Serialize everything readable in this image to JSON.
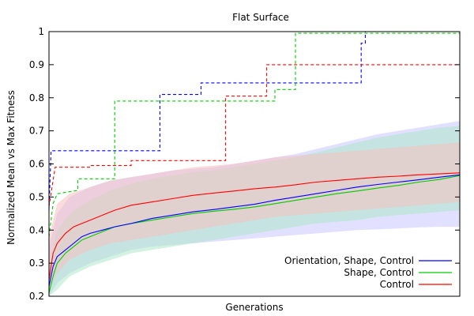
{
  "chart_data": {
    "type": "line",
    "title": "Flat Surface",
    "xlabel": "Generations",
    "ylabel": "Normalized Mean vs Max Fitness",
    "ylim": [
      0.2,
      1.0
    ],
    "yticks": [
      "0.2",
      "0.3",
      "0.4",
      "0.5",
      "0.6",
      "0.7",
      "0.8",
      "0.9",
      "1"
    ],
    "xlim": [
      0,
      100
    ],
    "legend_position": "bottom-right",
    "series": [
      {
        "name": "Orientation, Shape, Control",
        "color": "#0000ff",
        "max": [
          [
            0,
            0.46
          ],
          [
            0.5,
            0.64
          ],
          [
            27,
            0.64
          ],
          [
            27,
            0.81
          ],
          [
            37,
            0.81
          ],
          [
            37,
            0.845
          ],
          [
            76,
            0.845
          ],
          [
            76,
            0.965
          ],
          [
            77,
            0.965
          ],
          [
            77,
            1.0
          ],
          [
            100,
            1.0
          ]
        ],
        "mean": [
          [
            0,
            0.23
          ],
          [
            1,
            0.29
          ],
          [
            2,
            0.32
          ],
          [
            4,
            0.34
          ],
          [
            6,
            0.36
          ],
          [
            8,
            0.38
          ],
          [
            10,
            0.39
          ],
          [
            13,
            0.4
          ],
          [
            16,
            0.41
          ],
          [
            20,
            0.42
          ],
          [
            25,
            0.435
          ],
          [
            30,
            0.445
          ],
          [
            35,
            0.455
          ],
          [
            40,
            0.462
          ],
          [
            45,
            0.47
          ],
          [
            50,
            0.478
          ],
          [
            55,
            0.49
          ],
          [
            60,
            0.5
          ],
          [
            65,
            0.51
          ],
          [
            70,
            0.52
          ],
          [
            75,
            0.53
          ],
          [
            80,
            0.538
          ],
          [
            85,
            0.545
          ],
          [
            90,
            0.552
          ],
          [
            95,
            0.56
          ],
          [
            100,
            0.567
          ]
        ],
        "upper": [
          [
            0,
            0.35
          ],
          [
            2,
            0.45
          ],
          [
            5,
            0.5
          ],
          [
            10,
            0.53
          ],
          [
            15,
            0.55
          ],
          [
            20,
            0.56
          ],
          [
            25,
            0.57
          ],
          [
            30,
            0.58
          ],
          [
            35,
            0.585
          ],
          [
            40,
            0.59
          ],
          [
            45,
            0.6
          ],
          [
            50,
            0.61
          ],
          [
            55,
            0.62
          ],
          [
            60,
            0.63
          ],
          [
            65,
            0.645
          ],
          [
            70,
            0.66
          ],
          [
            75,
            0.675
          ],
          [
            80,
            0.69
          ],
          [
            85,
            0.7
          ],
          [
            90,
            0.71
          ],
          [
            95,
            0.72
          ],
          [
            100,
            0.73
          ]
        ],
        "lower": [
          [
            0,
            0.2
          ],
          [
            2,
            0.24
          ],
          [
            5,
            0.27
          ],
          [
            10,
            0.3
          ],
          [
            15,
            0.32
          ],
          [
            20,
            0.34
          ],
          [
            25,
            0.35
          ],
          [
            30,
            0.355
          ],
          [
            35,
            0.36
          ],
          [
            40,
            0.365
          ],
          [
            45,
            0.37
          ],
          [
            50,
            0.375
          ],
          [
            55,
            0.38
          ],
          [
            60,
            0.385
          ],
          [
            65,
            0.39
          ],
          [
            70,
            0.395
          ],
          [
            75,
            0.4
          ],
          [
            80,
            0.402
          ],
          [
            85,
            0.405
          ],
          [
            90,
            0.408
          ],
          [
            95,
            0.41
          ],
          [
            100,
            0.41
          ]
        ]
      },
      {
        "name": "Shape, Control",
        "color": "#00cc00",
        "max": [
          [
            0,
            0.38
          ],
          [
            1,
            0.48
          ],
          [
            2,
            0.51
          ],
          [
            7,
            0.52
          ],
          [
            7,
            0.555
          ],
          [
            16,
            0.555
          ],
          [
            16,
            0.79
          ],
          [
            50,
            0.79
          ],
          [
            50,
            0.79
          ],
          [
            55,
            0.79
          ],
          [
            55,
            0.825
          ],
          [
            60,
            0.825
          ],
          [
            60,
            0.995
          ],
          [
            100,
            0.995
          ]
        ],
        "mean": [
          [
            0,
            0.21
          ],
          [
            1,
            0.26
          ],
          [
            2,
            0.3
          ],
          [
            4,
            0.33
          ],
          [
            6,
            0.35
          ],
          [
            8,
            0.37
          ],
          [
            10,
            0.38
          ],
          [
            13,
            0.395
          ],
          [
            16,
            0.41
          ],
          [
            20,
            0.42
          ],
          [
            25,
            0.43
          ],
          [
            30,
            0.44
          ],
          [
            35,
            0.45
          ],
          [
            40,
            0.457
          ],
          [
            45,
            0.463
          ],
          [
            50,
            0.47
          ],
          [
            55,
            0.48
          ],
          [
            60,
            0.49
          ],
          [
            65,
            0.5
          ],
          [
            70,
            0.51
          ],
          [
            75,
            0.518
          ],
          [
            80,
            0.527
          ],
          [
            85,
            0.535
          ],
          [
            90,
            0.545
          ],
          [
            95,
            0.553
          ],
          [
            100,
            0.565
          ]
        ],
        "upper": [
          [
            0,
            0.3
          ],
          [
            2,
            0.4
          ],
          [
            5,
            0.45
          ],
          [
            10,
            0.49
          ],
          [
            15,
            0.52
          ],
          [
            20,
            0.54
          ],
          [
            25,
            0.555
          ],
          [
            30,
            0.565
          ],
          [
            35,
            0.575
          ],
          [
            40,
            0.58
          ],
          [
            45,
            0.59
          ],
          [
            50,
            0.6
          ],
          [
            55,
            0.61
          ],
          [
            60,
            0.62
          ],
          [
            65,
            0.635
          ],
          [
            70,
            0.65
          ],
          [
            75,
            0.665
          ],
          [
            80,
            0.68
          ],
          [
            85,
            0.69
          ],
          [
            90,
            0.7
          ],
          [
            95,
            0.71
          ],
          [
            100,
            0.715
          ]
        ],
        "lower": [
          [
            0,
            0.2
          ],
          [
            2,
            0.22
          ],
          [
            5,
            0.26
          ],
          [
            10,
            0.29
          ],
          [
            15,
            0.31
          ],
          [
            20,
            0.33
          ],
          [
            25,
            0.34
          ],
          [
            30,
            0.35
          ],
          [
            35,
            0.36
          ],
          [
            40,
            0.37
          ],
          [
            45,
            0.38
          ],
          [
            50,
            0.39
          ],
          [
            55,
            0.4
          ],
          [
            60,
            0.41
          ],
          [
            65,
            0.42
          ],
          [
            70,
            0.425
          ],
          [
            75,
            0.43
          ],
          [
            80,
            0.44
          ],
          [
            85,
            0.445
          ],
          [
            90,
            0.45
          ],
          [
            95,
            0.455
          ],
          [
            100,
            0.46
          ]
        ]
      },
      {
        "name": "Control",
        "color": "#ff0000",
        "max": [
          [
            0,
            0.47
          ],
          [
            1,
            0.55
          ],
          [
            1.5,
            0.59
          ],
          [
            10,
            0.59
          ],
          [
            10,
            0.595
          ],
          [
            20,
            0.595
          ],
          [
            20,
            0.61
          ],
          [
            33,
            0.61
          ],
          [
            33,
            0.61
          ],
          [
            43,
            0.61
          ],
          [
            43,
            0.805
          ],
          [
            53,
            0.805
          ],
          [
            53,
            0.9
          ],
          [
            100,
            0.9
          ]
        ],
        "mean": [
          [
            0,
            0.25
          ],
          [
            1,
            0.33
          ],
          [
            2,
            0.36
          ],
          [
            4,
            0.39
          ],
          [
            6,
            0.41
          ],
          [
            8,
            0.42
          ],
          [
            10,
            0.43
          ],
          [
            13,
            0.445
          ],
          [
            16,
            0.46
          ],
          [
            20,
            0.475
          ],
          [
            25,
            0.485
          ],
          [
            30,
            0.495
          ],
          [
            35,
            0.505
          ],
          [
            40,
            0.512
          ],
          [
            45,
            0.518
          ],
          [
            50,
            0.525
          ],
          [
            55,
            0.53
          ],
          [
            60,
            0.537
          ],
          [
            65,
            0.545
          ],
          [
            70,
            0.55
          ],
          [
            75,
            0.555
          ],
          [
            80,
            0.56
          ],
          [
            85,
            0.563
          ],
          [
            90,
            0.567
          ],
          [
            95,
            0.57
          ],
          [
            100,
            0.573
          ]
        ],
        "upper": [
          [
            0,
            0.38
          ],
          [
            2,
            0.48
          ],
          [
            5,
            0.51
          ],
          [
            10,
            0.53
          ],
          [
            15,
            0.55
          ],
          [
            20,
            0.56
          ],
          [
            25,
            0.57
          ],
          [
            30,
            0.58
          ],
          [
            35,
            0.59
          ],
          [
            40,
            0.595
          ],
          [
            45,
            0.6
          ],
          [
            50,
            0.61
          ],
          [
            55,
            0.62
          ],
          [
            60,
            0.625
          ],
          [
            65,
            0.63
          ],
          [
            70,
            0.635
          ],
          [
            75,
            0.64
          ],
          [
            80,
            0.645
          ],
          [
            85,
            0.65
          ],
          [
            90,
            0.655
          ],
          [
            95,
            0.66
          ],
          [
            100,
            0.665
          ]
        ],
        "lower": [
          [
            0,
            0.22
          ],
          [
            2,
            0.27
          ],
          [
            5,
            0.31
          ],
          [
            10,
            0.34
          ],
          [
            15,
            0.36
          ],
          [
            20,
            0.37
          ],
          [
            25,
            0.38
          ],
          [
            30,
            0.39
          ],
          [
            35,
            0.4
          ],
          [
            40,
            0.41
          ],
          [
            45,
            0.42
          ],
          [
            50,
            0.43
          ],
          [
            55,
            0.44
          ],
          [
            60,
            0.445
          ],
          [
            65,
            0.45
          ],
          [
            70,
            0.455
          ],
          [
            75,
            0.46
          ],
          [
            80,
            0.465
          ],
          [
            85,
            0.47
          ],
          [
            90,
            0.475
          ],
          [
            95,
            0.48
          ],
          [
            100,
            0.485
          ]
        ]
      }
    ],
    "band_colors": [
      "#c8c8ff",
      "#aee8c8",
      "#f5c0c0"
    ]
  }
}
